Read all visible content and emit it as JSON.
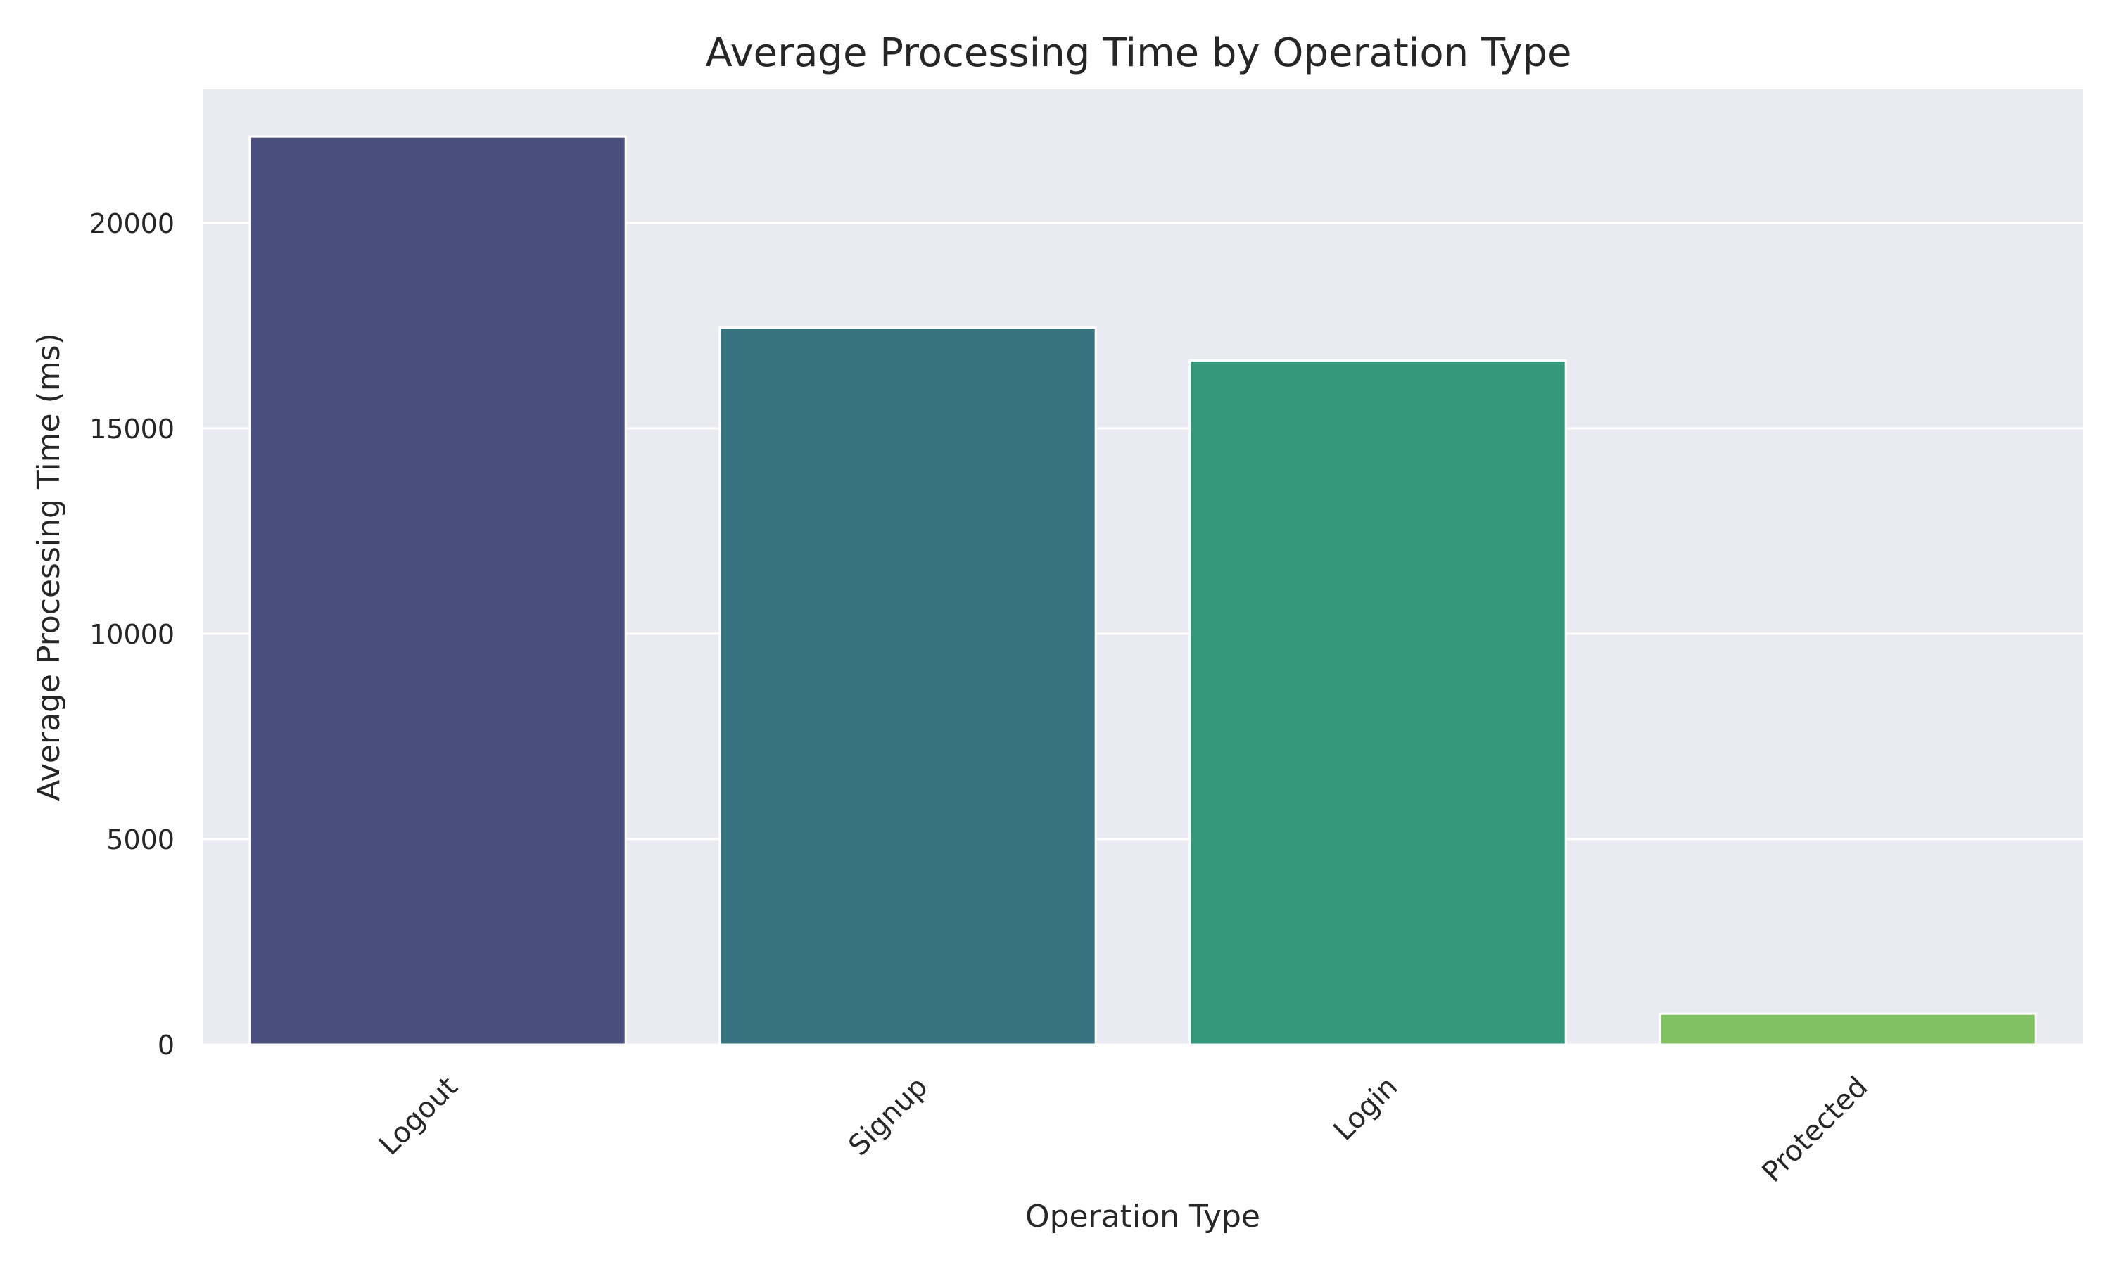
{
  "chart_data": {
    "type": "bar",
    "title": "Average Processing Time by Operation Type",
    "xlabel": "Operation Type",
    "ylabel": "Average Processing Time (ms)",
    "categories": [
      "Logout",
      "Signup",
      "Login",
      "Protected"
    ],
    "values": [
      22100,
      17450,
      16650,
      750
    ],
    "colors": [
      "#4a4e7c",
      "#377280",
      "#35987b",
      "#81c163"
    ],
    "ylim": [
      0,
      23250
    ],
    "yticks": [
      0,
      5000,
      10000,
      15000,
      20000
    ],
    "ytick_labels": [
      "0",
      "5000",
      "10000",
      "15000",
      "20000"
    ],
    "grid": true,
    "legend": null
  },
  "style": {
    "plot_background": "#eaeaf2",
    "grid_color": "#ffffff",
    "text_color": "#262626"
  }
}
